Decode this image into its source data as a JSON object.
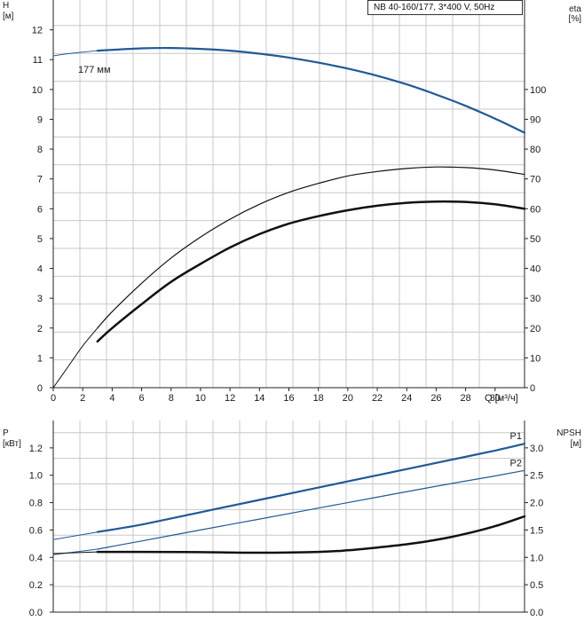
{
  "model_label": "NB 40-160/177, 3*400 V, 50Hz",
  "colors": {
    "grid": "#c8c8c8",
    "axis": "#222222",
    "blue": "#1f5a96",
    "black": "#111111"
  },
  "chart_data": [
    {
      "type": "line",
      "panel": "top",
      "xlabel": "Q [м³/ч]",
      "x_ticks": [
        0,
        2,
        4,
        6,
        8,
        10,
        12,
        14,
        16,
        18,
        20,
        22,
        24,
        26,
        28,
        30
      ],
      "xlim": [
        0,
        32
      ],
      "left_axis": {
        "label_line1": "H",
        "label_line2": "[м]",
        "ylim": [
          0,
          13
        ],
        "ticks": [
          0,
          1,
          2,
          3,
          4,
          5,
          6,
          7,
          8,
          9,
          10,
          11,
          12
        ]
      },
      "right_axis": {
        "label_line1": "eta",
        "label_line2": "[%]",
        "ylim": [
          0,
          130
        ],
        "ticks": [
          0,
          10,
          20,
          30,
          40,
          50,
          60,
          70,
          80,
          90,
          100
        ]
      },
      "annotation": "177 мм",
      "series": [
        {
          "key": "h_ext",
          "axis": "left",
          "color": "blue",
          "width": 1,
          "x": [
            0,
            1,
            2,
            3
          ],
          "y": [
            11.13,
            11.2,
            11.25,
            11.3
          ]
        },
        {
          "key": "h",
          "axis": "left",
          "color": "blue",
          "width": 2.2,
          "x": [
            3,
            6,
            8,
            10,
            12,
            14,
            16,
            18,
            20,
            22,
            24,
            26,
            28,
            30,
            32
          ],
          "y": [
            11.3,
            11.38,
            11.39,
            11.36,
            11.3,
            11.2,
            11.07,
            10.9,
            10.7,
            10.46,
            10.17,
            9.83,
            9.45,
            9.02,
            8.55
          ]
        },
        {
          "key": "eta_ext",
          "axis": "right",
          "color": "black",
          "width": 1,
          "x": [
            0,
            1,
            2,
            3
          ],
          "y": [
            0,
            7,
            14,
            20
          ]
        },
        {
          "key": "eta",
          "axis": "right",
          "color": "black",
          "width": 1.2,
          "x": [
            3,
            4,
            6,
            8,
            10,
            12,
            14,
            16,
            18,
            20,
            22,
            24,
            26,
            28,
            30,
            32
          ],
          "y": [
            20,
            25.5,
            35,
            43.5,
            50.5,
            56.5,
            61.5,
            65.5,
            68.5,
            71,
            72.5,
            73.5,
            74,
            73.8,
            73,
            71.5
          ]
        },
        {
          "key": "eta_motor",
          "axis": "right",
          "color": "black",
          "width": 2.5,
          "x": [
            3,
            4,
            6,
            8,
            10,
            12,
            14,
            16,
            18,
            20,
            22,
            24,
            26,
            28,
            30,
            32
          ],
          "y": [
            15.5,
            20,
            28,
            35.5,
            41.5,
            47,
            51.5,
            55,
            57.5,
            59.5,
            61,
            62,
            62.4,
            62.3,
            61.5,
            60
          ]
        }
      ]
    },
    {
      "type": "line",
      "panel": "bottom",
      "xlim": [
        0,
        32
      ],
      "left_axis": {
        "label_line1": "P",
        "label_line2": "[кВт]",
        "ylim": [
          0,
          1.4
        ],
        "ticks": [
          "0.0",
          "0.2",
          "0.4",
          "0.6",
          "0.8",
          "1.0",
          "1.2"
        ]
      },
      "right_axis": {
        "label_line1": "NPSH",
        "label_line2": "[м]",
        "ylim": [
          0,
          3.5
        ],
        "ticks": [
          "0.0",
          "0.5",
          "1.0",
          "1.5",
          "2.0",
          "2.5",
          "3.0"
        ]
      },
      "series": [
        {
          "key": "p1_ext",
          "axis": "left",
          "color": "blue",
          "width": 1,
          "x": [
            0,
            3
          ],
          "y": [
            0.53,
            0.585
          ]
        },
        {
          "key": "p1",
          "name": "P1",
          "axis": "left",
          "color": "blue",
          "width": 2.2,
          "x": [
            3,
            6,
            10,
            14,
            18,
            22,
            26,
            30,
            32
          ],
          "y": [
            0.585,
            0.64,
            0.73,
            0.82,
            0.91,
            1.0,
            1.09,
            1.18,
            1.23
          ]
        },
        {
          "key": "p2_ext",
          "axis": "left",
          "color": "blue",
          "width": 1,
          "x": [
            0,
            3
          ],
          "y": [
            0.42,
            0.46
          ]
        },
        {
          "key": "p2",
          "name": "P2",
          "axis": "left",
          "color": "blue",
          "width": 1.2,
          "x": [
            3,
            6,
            10,
            14,
            18,
            22,
            26,
            30,
            32
          ],
          "y": [
            0.46,
            0.52,
            0.6,
            0.68,
            0.76,
            0.84,
            0.92,
            0.995,
            1.035
          ]
        },
        {
          "key": "npsh_ext",
          "axis": "right",
          "color": "black",
          "width": 1,
          "x": [
            0,
            3
          ],
          "y": [
            1.07,
            1.1
          ]
        },
        {
          "key": "npsh",
          "axis": "right",
          "color": "black",
          "width": 2.5,
          "x": [
            3,
            6,
            10,
            14,
            18,
            20,
            22,
            24,
            26,
            28,
            30,
            32
          ],
          "y": [
            1.1,
            1.1,
            1.095,
            1.085,
            1.1,
            1.13,
            1.18,
            1.24,
            1.32,
            1.43,
            1.57,
            1.75
          ]
        }
      ]
    }
  ]
}
